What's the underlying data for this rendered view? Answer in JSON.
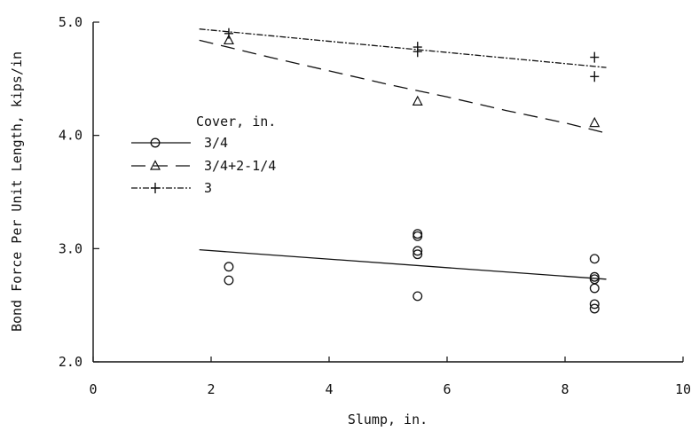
{
  "chart_data": {
    "type": "scatter",
    "title": "",
    "xlabel": "Slump, in.",
    "ylabel": "Bond Force Per Unit Length, kips/in",
    "xlim": [
      0,
      10
    ],
    "ylim": [
      2.0,
      5.0
    ],
    "xticks": [
      0,
      2,
      4,
      6,
      8,
      10
    ],
    "xtick_labels": [
      "0",
      "2",
      "4",
      "6",
      "8",
      "10"
    ],
    "yticks": [
      2.0,
      3.0,
      4.0,
      5.0
    ],
    "ytick_labels": [
      "2.0",
      "3.0",
      "4.0",
      "5.0"
    ],
    "grid": false,
    "legend_placement": "center-left",
    "legend_title": "Cover, in.",
    "series": [
      {
        "name": "3/4",
        "marker": "circle",
        "line_style": "solid",
        "points": [
          {
            "x": 2.3,
            "y": 2.84
          },
          {
            "x": 2.3,
            "y": 2.72
          },
          {
            "x": 5.5,
            "y": 3.13
          },
          {
            "x": 5.5,
            "y": 3.11
          },
          {
            "x": 5.5,
            "y": 2.98
          },
          {
            "x": 5.5,
            "y": 2.95
          },
          {
            "x": 5.5,
            "y": 2.58
          },
          {
            "x": 8.5,
            "y": 2.91
          },
          {
            "x": 8.5,
            "y": 2.75
          },
          {
            "x": 8.5,
            "y": 2.73
          },
          {
            "x": 8.5,
            "y": 2.65
          },
          {
            "x": 8.5,
            "y": 2.51
          },
          {
            "x": 8.5,
            "y": 2.47
          }
        ],
        "fit": [
          {
            "x": 1.8,
            "y": 2.99
          },
          {
            "x": 8.7,
            "y": 2.73
          }
        ]
      },
      {
        "name": "3/4+2-1/4",
        "marker": "triangle",
        "line_style": "dashed",
        "points": [
          {
            "x": 2.3,
            "y": 4.84
          },
          {
            "x": 5.5,
            "y": 4.3
          },
          {
            "x": 8.5,
            "y": 4.11
          }
        ],
        "fit": [
          {
            "x": 1.8,
            "y": 4.84
          },
          {
            "x": 3.0,
            "y": 4.69
          },
          {
            "x": 4.0,
            "y": 4.57
          },
          {
            "x": 5.0,
            "y": 4.45
          },
          {
            "x": 6.0,
            "y": 4.34
          },
          {
            "x": 7.0,
            "y": 4.22
          },
          {
            "x": 8.0,
            "y": 4.11
          },
          {
            "x": 8.7,
            "y": 4.02
          }
        ]
      },
      {
        "name": "3",
        "marker": "plus",
        "line_style": "dash-dot",
        "points": [
          {
            "x": 2.3,
            "y": 4.9
          },
          {
            "x": 5.5,
            "y": 4.78
          },
          {
            "x": 5.5,
            "y": 4.74
          },
          {
            "x": 8.5,
            "y": 4.69
          },
          {
            "x": 8.5,
            "y": 4.52
          }
        ],
        "fit": [
          {
            "x": 1.8,
            "y": 4.94
          },
          {
            "x": 8.7,
            "y": 4.6
          }
        ]
      }
    ]
  }
}
